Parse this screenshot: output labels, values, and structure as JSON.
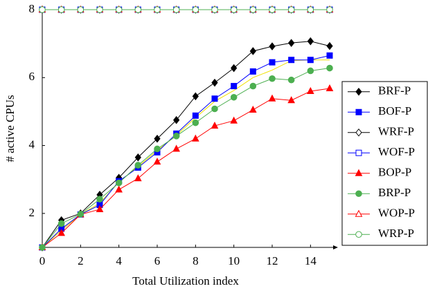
{
  "chart_data": {
    "type": "line",
    "xlabel": "Total Utilization index",
    "ylabel": "# active CPUs",
    "x": [
      0,
      1,
      2,
      3,
      4,
      5,
      6,
      7,
      8,
      9,
      10,
      11,
      12,
      13,
      14,
      15
    ],
    "xlim": [
      0,
      15
    ],
    "ylim": [
      1,
      8
    ],
    "xticks": [
      0,
      2,
      4,
      6,
      8,
      10,
      12,
      14
    ],
    "yticks": [
      2,
      4,
      6,
      8
    ],
    "legend": "outside-right",
    "series": [
      {
        "values": [
          1,
          1.5,
          1.97,
          2.3,
          2.92,
          3.38,
          3.85,
          4.3,
          4.82,
          5.3,
          5.62,
          6.0,
          6.22,
          6.5,
          6.52,
          6.52
        ],
        "color": "#f0e000",
        "marker": "none"
      },
      {
        "name": "BRF-P",
        "color": "#000000",
        "marker": "diamond",
        "values": [
          1,
          1.8,
          2.0,
          2.55,
          3.05,
          3.65,
          4.2,
          4.75,
          5.45,
          5.85,
          6.28,
          6.78,
          6.92,
          7.02,
          7.07,
          6.93
        ]
      },
      {
        "name": "BOF-P",
        "color": "#0000ff",
        "marker": "square",
        "values": [
          1,
          1.55,
          1.97,
          2.25,
          2.95,
          3.35,
          3.8,
          4.35,
          4.88,
          5.38,
          5.75,
          6.18,
          6.45,
          6.52,
          6.52,
          6.65
        ]
      },
      {
        "name": "WRF-P",
        "color": "#000000",
        "marker": "diamond-open",
        "values": [
          8,
          8,
          8,
          8,
          8,
          8,
          8,
          8,
          8,
          8,
          8,
          8,
          8,
          8,
          8,
          8
        ]
      },
      {
        "name": "WOF-P",
        "color": "#0000ff",
        "marker": "square-open",
        "values": [
          8,
          8,
          8,
          8,
          8,
          8,
          8,
          8,
          8,
          8,
          8,
          8,
          8,
          8,
          8,
          8
        ]
      },
      {
        "name": "BOP-P",
        "color": "#ff0000",
        "marker": "triangle",
        "values": [
          1,
          1.42,
          1.97,
          2.12,
          2.7,
          3.03,
          3.52,
          3.9,
          4.2,
          4.58,
          4.73,
          5.05,
          5.38,
          5.33,
          5.6,
          5.68
        ]
      },
      {
        "name": "BRP-P",
        "color": "#4caf50",
        "marker": "circle",
        "values": [
          1,
          1.7,
          1.98,
          2.42,
          2.9,
          3.42,
          3.9,
          4.28,
          4.67,
          5.08,
          5.42,
          5.75,
          5.97,
          5.93,
          6.2,
          6.28
        ]
      },
      {
        "name": "WOP-P",
        "color": "#ff0000",
        "marker": "triangle-open",
        "values": [
          8,
          8,
          8,
          8,
          8,
          8,
          8,
          8,
          8,
          8,
          8,
          8,
          8,
          8,
          8,
          8
        ]
      },
      {
        "name": "WRP-P",
        "color": "#4caf50",
        "marker": "circle-open",
        "values": [
          8,
          8,
          8,
          8,
          8,
          8,
          8,
          8,
          8,
          8,
          8,
          8,
          8,
          8,
          8,
          8
        ]
      }
    ]
  }
}
